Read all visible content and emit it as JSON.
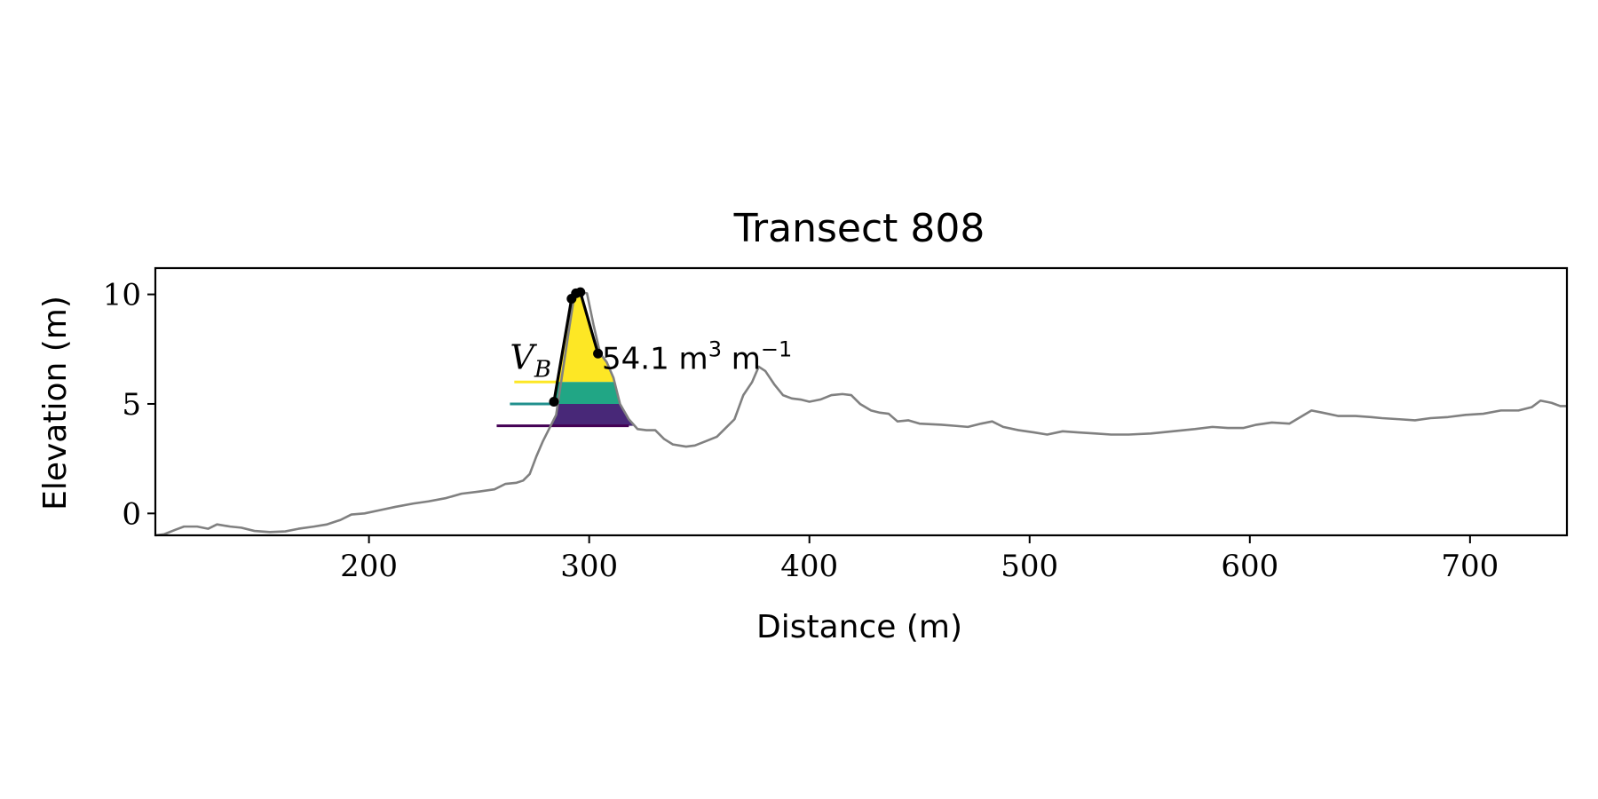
{
  "chart_data": {
    "type": "line",
    "title": "Transect 808",
    "xlabel": "Distance (m)",
    "ylabel": "Elevation (m)",
    "xlim": [
      103,
      744
    ],
    "ylim": [
      -1,
      11.2
    ],
    "xticks": [
      200,
      300,
      400,
      500,
      600,
      700
    ],
    "yticks": [
      0,
      5,
      10
    ],
    "grid": false,
    "colors": {
      "profile": "#808080",
      "dune_line": "#000000",
      "band_upper": "#fde725",
      "band_middle": "#21a685",
      "band_lower": "#482878",
      "level_upper": "#fde725",
      "level_middle": "#21908d",
      "level_lower": "#440154"
    },
    "profile": [
      [
        103,
        -1
      ],
      [
        107,
        -0.95
      ],
      [
        112,
        -0.75
      ],
      [
        116,
        -0.6
      ],
      [
        122,
        -0.6
      ],
      [
        127,
        -0.7
      ],
      [
        131,
        -0.5
      ],
      [
        137,
        -0.6
      ],
      [
        142,
        -0.65
      ],
      [
        148,
        -0.8
      ],
      [
        155,
        -0.85
      ],
      [
        162,
        -0.82
      ],
      [
        168,
        -0.7
      ],
      [
        175,
        -0.6
      ],
      [
        181,
        -0.5
      ],
      [
        187,
        -0.3
      ],
      [
        192,
        -0.05
      ],
      [
        198,
        0.0
      ],
      [
        205,
        0.15
      ],
      [
        212,
        0.3
      ],
      [
        220,
        0.45
      ],
      [
        227,
        0.55
      ],
      [
        235,
        0.7
      ],
      [
        242,
        0.9
      ],
      [
        250,
        1.0
      ],
      [
        257,
        1.1
      ],
      [
        262,
        1.35
      ],
      [
        267,
        1.4
      ],
      [
        270,
        1.5
      ],
      [
        273,
        1.8
      ],
      [
        276,
        2.6
      ],
      [
        279,
        3.3
      ],
      [
        283,
        4.1
      ],
      [
        285,
        4.5
      ],
      [
        288,
        6.5
      ],
      [
        291,
        8.5
      ],
      [
        293,
        9.8
      ],
      [
        296,
        10.1
      ],
      [
        299,
        10.05
      ],
      [
        302,
        8.6
      ],
      [
        305,
        7.3
      ],
      [
        308,
        6.9
      ],
      [
        311,
        6.2
      ],
      [
        314,
        5.0
      ],
      [
        318,
        4.3
      ],
      [
        322,
        3.85
      ],
      [
        326,
        3.8
      ],
      [
        330,
        3.8
      ],
      [
        334,
        3.4
      ],
      [
        338,
        3.15
      ],
      [
        344,
        3.05
      ],
      [
        348,
        3.1
      ],
      [
        353,
        3.3
      ],
      [
        358,
        3.5
      ],
      [
        362,
        3.9
      ],
      [
        366,
        4.3
      ],
      [
        370,
        5.4
      ],
      [
        374,
        6.0
      ],
      [
        377,
        6.7
      ],
      [
        380,
        6.5
      ],
      [
        384,
        5.9
      ],
      [
        388,
        5.4
      ],
      [
        392,
        5.25
      ],
      [
        396,
        5.2
      ],
      [
        400,
        5.1
      ],
      [
        405,
        5.2
      ],
      [
        410,
        5.4
      ],
      [
        415,
        5.45
      ],
      [
        419,
        5.4
      ],
      [
        423,
        5.0
      ],
      [
        428,
        4.7
      ],
      [
        432,
        4.6
      ],
      [
        436,
        4.55
      ],
      [
        440,
        4.2
      ],
      [
        445,
        4.25
      ],
      [
        450,
        4.1
      ],
      [
        460,
        4.05
      ],
      [
        466,
        4.0
      ],
      [
        472,
        3.95
      ],
      [
        478,
        4.1
      ],
      [
        483,
        4.2
      ],
      [
        488,
        3.95
      ],
      [
        495,
        3.8
      ],
      [
        502,
        3.7
      ],
      [
        508,
        3.6
      ],
      [
        515,
        3.75
      ],
      [
        522,
        3.7
      ],
      [
        530,
        3.65
      ],
      [
        537,
        3.6
      ],
      [
        545,
        3.6
      ],
      [
        555,
        3.65
      ],
      [
        565,
        3.75
      ],
      [
        575,
        3.85
      ],
      [
        583,
        3.95
      ],
      [
        590,
        3.9
      ],
      [
        597,
        3.9
      ],
      [
        603,
        4.05
      ],
      [
        610,
        4.15
      ],
      [
        618,
        4.1
      ],
      [
        623,
        4.4
      ],
      [
        628,
        4.7
      ],
      [
        633,
        4.6
      ],
      [
        640,
        4.45
      ],
      [
        648,
        4.45
      ],
      [
        655,
        4.4
      ],
      [
        660,
        4.35
      ],
      [
        668,
        4.3
      ],
      [
        675,
        4.25
      ],
      [
        682,
        4.35
      ],
      [
        690,
        4.4
      ],
      [
        698,
        4.5
      ],
      [
        706,
        4.55
      ],
      [
        714,
        4.7
      ],
      [
        722,
        4.7
      ],
      [
        728,
        4.85
      ],
      [
        732,
        5.15
      ],
      [
        737,
        5.05
      ],
      [
        741,
        4.9
      ],
      [
        744,
        4.9
      ]
    ],
    "dune_outline": [
      [
        284,
        5.1
      ],
      [
        292,
        9.8
      ],
      [
        294,
        10.05
      ],
      [
        296,
        10.1
      ],
      [
        304,
        7.3
      ]
    ],
    "dune_points": [
      [
        284,
        5.1
      ],
      [
        292,
        9.8
      ],
      [
        294,
        10.05
      ],
      [
        296,
        10.1
      ],
      [
        304,
        7.3
      ]
    ],
    "bands": [
      {
        "color_key": "band_upper",
        "y0": 6.0,
        "y1": 10.1
      },
      {
        "color_key": "band_middle",
        "y0": 5.0,
        "y1": 6.0
      },
      {
        "color_key": "band_lower",
        "y0": 4.0,
        "y1": 5.0
      }
    ],
    "levels": [
      {
        "color_key": "level_upper",
        "y": 6.0,
        "x0": 266,
        "x1": 285
      },
      {
        "color_key": "level_middle",
        "y": 5.0,
        "x0": 264,
        "x1": 285
      },
      {
        "color_key": "level_lower",
        "y": 4.0,
        "x0": 258,
        "x1": 318
      }
    ],
    "annotations": {
      "vb_label": "V",
      "vb_sub": "B",
      "volume_value": "54.1 m",
      "volume_sup": "3",
      "volume_unit": " m",
      "volume_unit_sup": "−1"
    },
    "annotation_anchor": {
      "vb_x": 264,
      "value_x": 305,
      "y": 6.6
    }
  }
}
